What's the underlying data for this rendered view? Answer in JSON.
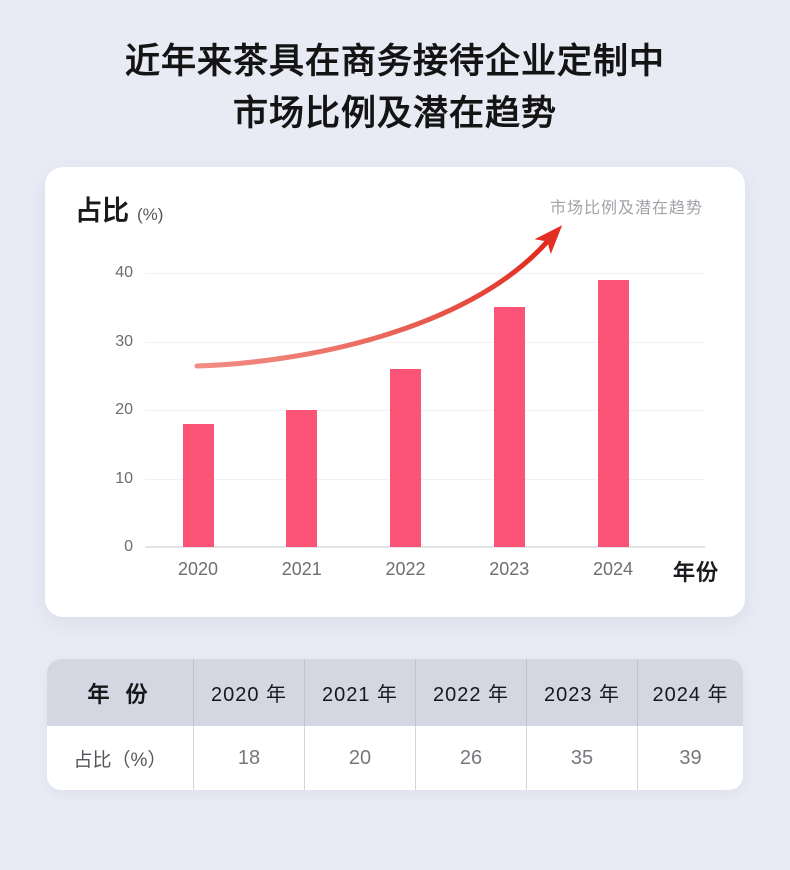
{
  "page": {
    "background": "#e8eaf4"
  },
  "title": {
    "line1": "近年来茶具在商务接待企业定制中",
    "line2": "市场比例及潜在趋势"
  },
  "chart_card": {
    "y_axis_title": "占比",
    "y_axis_unit": "(%)",
    "legend": "市场比例及潜在趋势",
    "x_axis_title": "年份"
  },
  "chart_data": {
    "type": "bar",
    "title": "市场比例及潜在趋势",
    "categories": [
      "2020",
      "2021",
      "2022",
      "2023",
      "2024"
    ],
    "values": [
      18,
      20,
      26,
      35,
      39
    ],
    "xlabel": "年份",
    "ylabel": "占比 (%)",
    "ylim": [
      0,
      40
    ],
    "yticks": [
      0,
      10,
      20,
      30,
      40
    ],
    "grid": true,
    "legend_position": "top-right",
    "bar_color": "#fc5476",
    "trend": {
      "type": "curved-arrow",
      "color": "#e2261b",
      "gradient": [
        "#f08a80",
        "#e01f10"
      ],
      "start_value": 26,
      "direction": "up-right"
    }
  },
  "table": {
    "header": [
      "年 份",
      "2020 年",
      "2021 年",
      "2022 年",
      "2023 年",
      "2024 年"
    ],
    "rows": [
      {
        "label": "占比（%）",
        "values": [
          "18",
          "20",
          "26",
          "35",
          "39"
        ]
      }
    ],
    "header_bg": "#d4d7e2"
  },
  "colors": {
    "page_bg": "#e8eaf4",
    "card_bg": "#ffffff",
    "bar": "#fc5476",
    "trend_red": "#e2261b",
    "table_header_bg": "#d4d7e2"
  }
}
